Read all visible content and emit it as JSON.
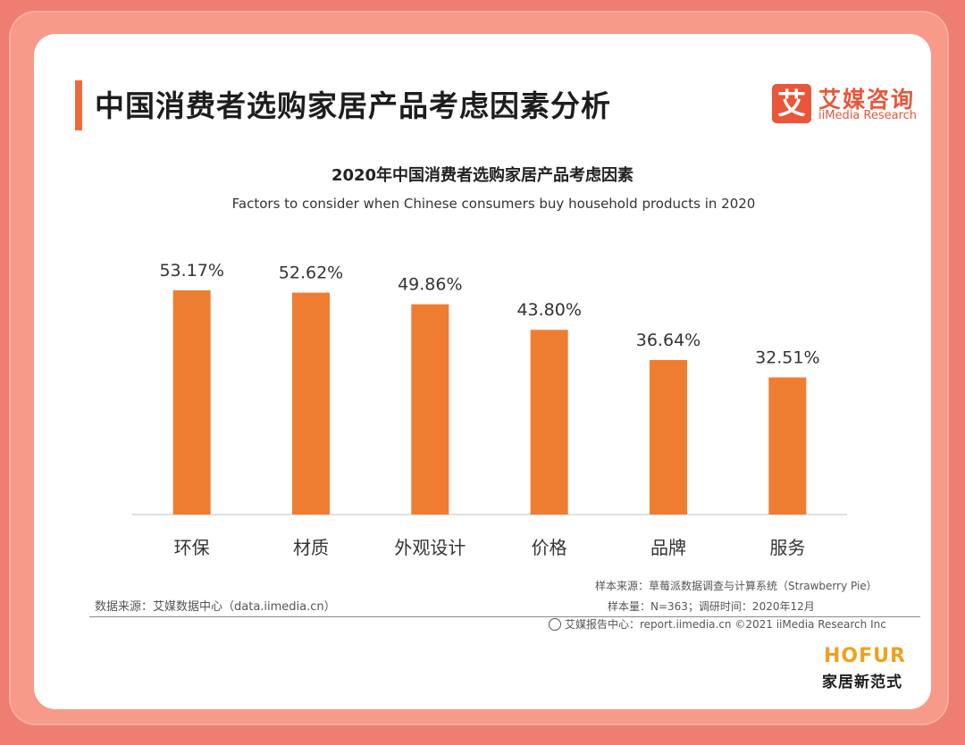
{
  "header": {
    "page_title": "中国消费者选购家居产品考虑因素分析",
    "logo_badge": "艾",
    "logo_cn": "艾媒咨询",
    "logo_en": "iiMedia Research"
  },
  "chart_data": {
    "type": "bar",
    "title": "2020年中国消费者选购家居产品考虑因素",
    "subtitle": "Factors to consider when Chinese consumers buy household products in 2020",
    "categories": [
      "环保",
      "材质",
      "外观设计",
      "价格",
      "品牌",
      "服务"
    ],
    "values": [
      53.17,
      52.62,
      49.86,
      43.8,
      36.64,
      32.51
    ],
    "value_labels": [
      "53.17%",
      "52.62%",
      "49.86%",
      "43.80%",
      "36.64%",
      "32.51%"
    ],
    "unit": "%",
    "ylim": [
      0,
      60
    ],
    "bar_color": "#ef7d31",
    "grid": false
  },
  "footer": {
    "data_source": "数据来源：艾媒数据中心（data.iimedia.cn）",
    "sample_source": "样本来源：草莓派数据调查与计算系统（Strawberry Pie）",
    "sample_size": "样本量：N=363；调研时间：2020年12月",
    "report_center": "艾媒报告中心：report.iimedia.cn   ©2021  iiMedia Research  Inc"
  },
  "watermark": {
    "brand": "HOFUR",
    "brand_cn": "家居新范式"
  }
}
